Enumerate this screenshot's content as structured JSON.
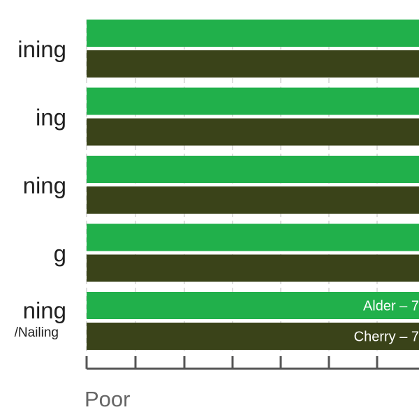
{
  "chart_data": {
    "type": "bar",
    "orientation": "horizontal",
    "categories": [
      "ining",
      "ing",
      "ning",
      "g",
      "ning"
    ],
    "subcategory_labels": [
      "",
      "",
      "",
      "",
      "/Nailing"
    ],
    "series": [
      {
        "values": [
          1,
          1,
          1,
          1,
          1
        ],
        "color": "#21b04b"
      },
      {
        "values": [
          1,
          1,
          1,
          1,
          1
        ],
        "color": "#3a4319"
      }
    ],
    "data_labels": {
      "4": [
        "Alder – 7",
        "Cherry – 7"
      ]
    },
    "x_axis_label": "Poor",
    "grid": true,
    "grid_color": "#bdbdbd",
    "axis_color": "#555555"
  }
}
